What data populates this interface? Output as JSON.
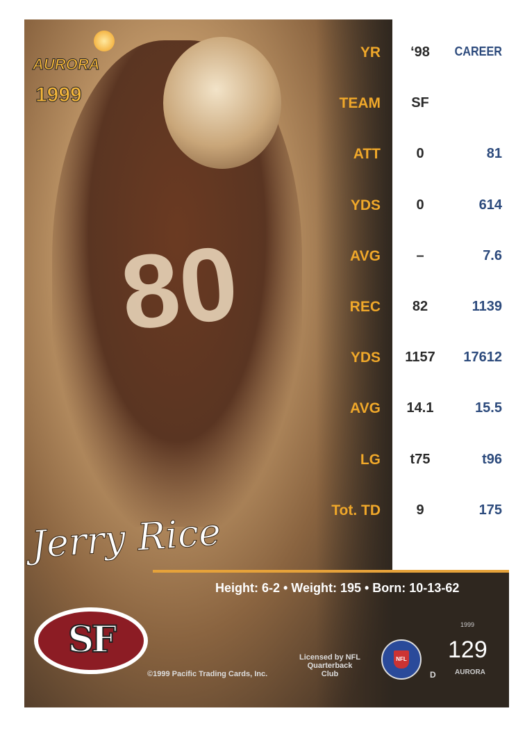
{
  "logo": {
    "brand": "AURORA",
    "year": "1999"
  },
  "stats": {
    "columns": [
      "'98",
      "CAREER"
    ],
    "col_98_label": "‘98",
    "col_career_label": "CAREER",
    "rows": [
      {
        "label": "YR",
        "y98": "‘98",
        "career": "CAREER"
      },
      {
        "label": "TEAM",
        "y98": "SF",
        "career": ""
      },
      {
        "label": "ATT",
        "y98": "0",
        "career": "81"
      },
      {
        "label": "YDS",
        "y98": "0",
        "career": "614"
      },
      {
        "label": "AVG",
        "y98": "–",
        "career": "7.6"
      },
      {
        "label": "REC",
        "y98": "82",
        "career": "1139"
      },
      {
        "label": "YDS",
        "y98": "1157",
        "career": "17612"
      },
      {
        "label": "AVG",
        "y98": "14.1",
        "career": "15.5"
      },
      {
        "label": "LG",
        "y98": "t75",
        "career": "t96"
      },
      {
        "label": "Tot. TD",
        "y98": "9",
        "career": "175"
      }
    ]
  },
  "player": {
    "signature": "Jerry Rice",
    "jersey_number": "80"
  },
  "bio": "Height: 6-2 • Weight: 195 • Born: 10-13-62",
  "team_logo": "SF",
  "copyright": "©1999 Pacific Trading Cards, Inc.",
  "license": [
    "Licensed by NFL",
    "Quarterback",
    "Club"
  ],
  "nfl_shield": "NFL",
  "code": "D",
  "card": {
    "year": "1999",
    "number": "129",
    "brand": "AURORA"
  },
  "colors": {
    "label": "#f0a82a",
    "career": "#2c4a7c",
    "background": "#2f271f",
    "team_red": "#8c1c24"
  }
}
